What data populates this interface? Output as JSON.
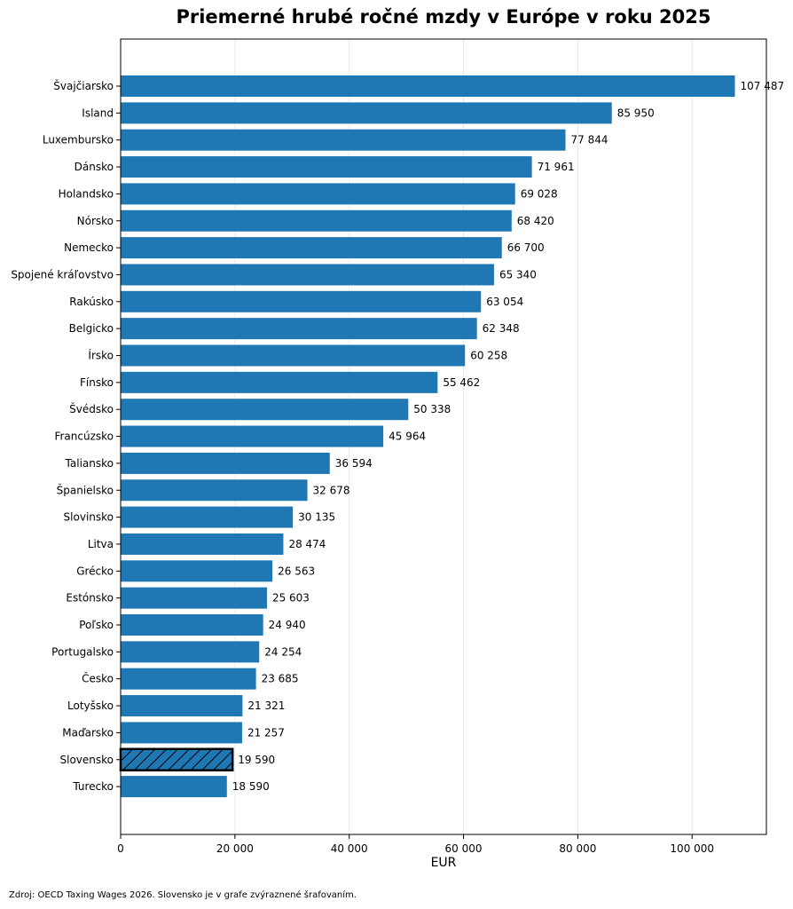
{
  "chart_data": {
    "type": "bar",
    "orientation": "horizontal",
    "title": "Priemerné hrubé ročné mzdy v Európe v roku 2025",
    "xlabel": "EUR",
    "ylabel": "",
    "xlim": [
      0,
      113000
    ],
    "x_ticks": [
      0,
      20000,
      40000,
      60000,
      80000,
      100000
    ],
    "x_tick_labels": [
      "0",
      "20 000",
      "40 000",
      "60 000",
      "80 000",
      "100 000"
    ],
    "grid": "vertical, light",
    "bar_color": "#1f77b4",
    "highlight_category": "Slovensko",
    "highlight_style": "hatched, black outline",
    "categories": [
      "Švajčiarsko",
      "Island",
      "Luxembursko",
      "Dánsko",
      "Holandsko",
      "Nórsko",
      "Nemecko",
      "Spojené kráľovstvo",
      "Rakúsko",
      "Belgicko",
      "Írsko",
      "Fínsko",
      "Švédsko",
      "Francúzsko",
      "Taliansko",
      "Španielsko",
      "Slovinsko",
      "Litva",
      "Grécko",
      "Estónsko",
      "Poľsko",
      "Portugalsko",
      "Česko",
      "Lotyšsko",
      "Maďarsko",
      "Slovensko",
      "Turecko"
    ],
    "values": [
      107487,
      85950,
      77844,
      71961,
      69028,
      68420,
      66700,
      65340,
      63054,
      62348,
      60258,
      55462,
      50338,
      45964,
      36594,
      32678,
      30135,
      28474,
      26563,
      25603,
      24940,
      24254,
      23685,
      21321,
      21257,
      19590,
      18590
    ],
    "value_labels": [
      "107 487",
      "85 950",
      "77 844",
      "71 961",
      "69 028",
      "68 420",
      "66 700",
      "65 340",
      "63 054",
      "62 348",
      "60 258",
      "55 462",
      "50 338",
      "45 964",
      "36 594",
      "32 678",
      "30 135",
      "28 474",
      "26 563",
      "25 603",
      "24 940",
      "24 254",
      "23 685",
      "21 321",
      "21 257",
      "19 590",
      "18 590"
    ]
  },
  "footnote": "Zdroj: OECD Taxing Wages 2026. Slovensko je v grafe zvýraznené šrafovaním."
}
